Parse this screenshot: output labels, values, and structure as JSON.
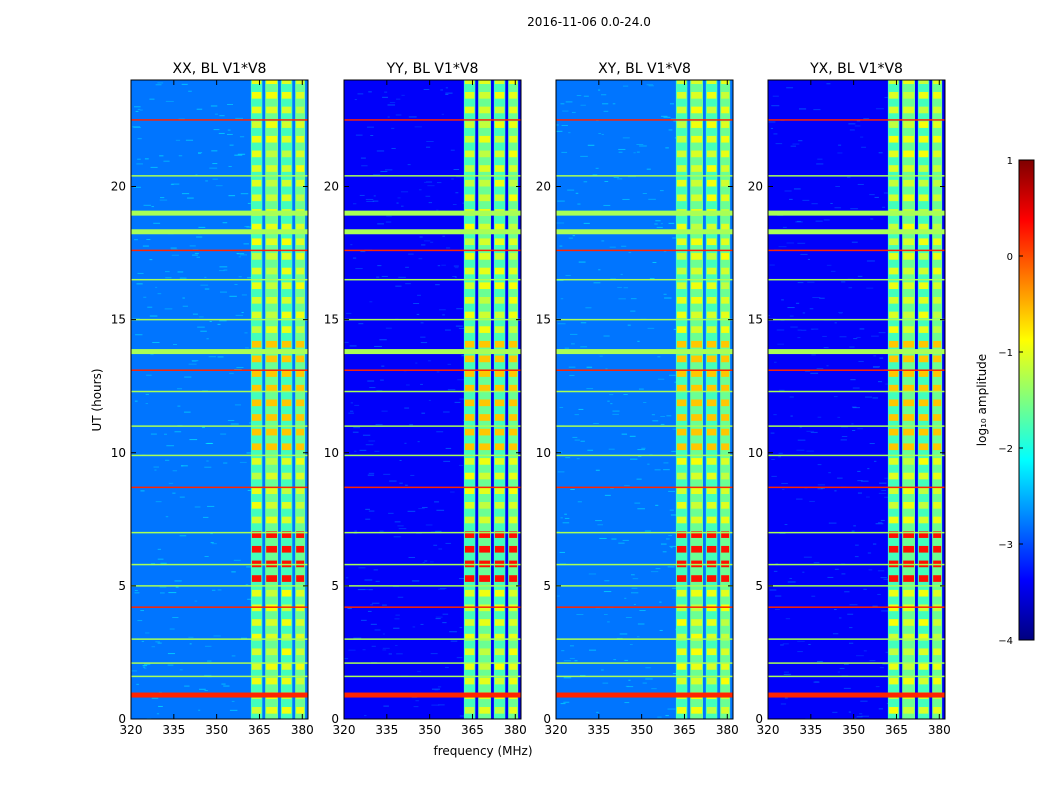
{
  "figure": {
    "suptitle": "2016-11-06 0.0-24.0"
  },
  "chart_data": {
    "type": "heatmap",
    "title": "2016-11-06 0.0-24.0",
    "xlabel": "frequency (MHz)",
    "ylabel": "UT (hours)",
    "xlim": [
      320,
      382
    ],
    "ylim": [
      0,
      24
    ],
    "xticks": [
      320,
      335,
      350,
      365,
      380
    ],
    "yticks": [
      0,
      5,
      10,
      15,
      20
    ],
    "panels": [
      {
        "title": "XX, BL V1*V8",
        "background_level": -2.8
      },
      {
        "title": "YY, BL V1*V8",
        "background_level": -3.4
      },
      {
        "title": "XY, BL V1*V8",
        "background_level": -2.8
      },
      {
        "title": "YX, BL V1*V8",
        "background_level": -3.4
      }
    ],
    "signal_band_mhz": [
      362,
      381
    ],
    "signal_stripes_mhz": [
      [
        362,
        366
      ],
      [
        367,
        371.5
      ],
      [
        372.5,
        376.5
      ],
      [
        377.5,
        381
      ]
    ],
    "rfi_hours": [
      0.9,
      1.6,
      2.1,
      3.0,
      4.2,
      5.0,
      5.8,
      7.0,
      8.7,
      9.9,
      11.0,
      12.3,
      13.1,
      13.8,
      15.0,
      16.5,
      17.6,
      18.3,
      19.0,
      20.4,
      22.5
    ],
    "colorbar": {
      "label": "log₁₀ amplitude",
      "range": [
        -4,
        1
      ],
      "ticks": [
        "1",
        "0",
        "−1",
        "−2",
        "−3",
        "−4"
      ],
      "colormap": [
        "#00007f",
        "#0000ff",
        "#007fff",
        "#00ffff",
        "#7fff7f",
        "#ffff00",
        "#ff7f00",
        "#ff0000",
        "#7f0000"
      ]
    }
  }
}
